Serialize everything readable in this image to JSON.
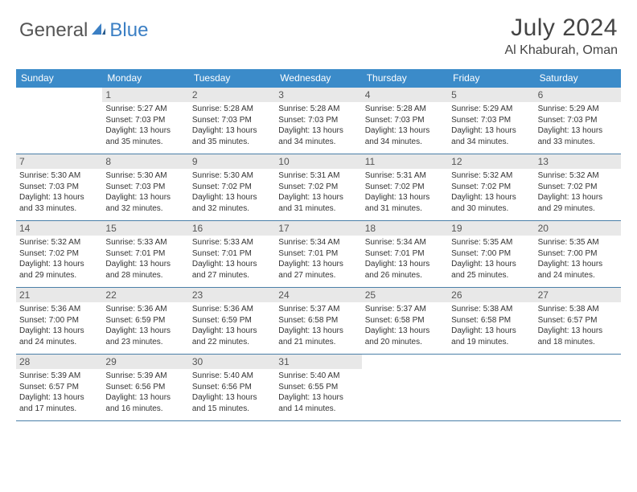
{
  "logo": {
    "general": "General",
    "blue": "Blue"
  },
  "title": {
    "monthYear": "July 2024",
    "location": "Al Khaburah, Oman"
  },
  "colors": {
    "headerBar": "#3b8bc9",
    "dayNumberBg": "#e8e8e8",
    "rowBorder": "#4a7fa8",
    "logoBlue": "#3b7fc4",
    "text": "#333333"
  },
  "weekdays": [
    "Sunday",
    "Monday",
    "Tuesday",
    "Wednesday",
    "Thursday",
    "Friday",
    "Saturday"
  ],
  "weeks": [
    [
      null,
      {
        "n": "1",
        "sunrise": "5:27 AM",
        "sunset": "7:03 PM",
        "dl": "13 hours and 35 minutes."
      },
      {
        "n": "2",
        "sunrise": "5:28 AM",
        "sunset": "7:03 PM",
        "dl": "13 hours and 35 minutes."
      },
      {
        "n": "3",
        "sunrise": "5:28 AM",
        "sunset": "7:03 PM",
        "dl": "13 hours and 34 minutes."
      },
      {
        "n": "4",
        "sunrise": "5:28 AM",
        "sunset": "7:03 PM",
        "dl": "13 hours and 34 minutes."
      },
      {
        "n": "5",
        "sunrise": "5:29 AM",
        "sunset": "7:03 PM",
        "dl": "13 hours and 34 minutes."
      },
      {
        "n": "6",
        "sunrise": "5:29 AM",
        "sunset": "7:03 PM",
        "dl": "13 hours and 33 minutes."
      }
    ],
    [
      {
        "n": "7",
        "sunrise": "5:30 AM",
        "sunset": "7:03 PM",
        "dl": "13 hours and 33 minutes."
      },
      {
        "n": "8",
        "sunrise": "5:30 AM",
        "sunset": "7:03 PM",
        "dl": "13 hours and 32 minutes."
      },
      {
        "n": "9",
        "sunrise": "5:30 AM",
        "sunset": "7:02 PM",
        "dl": "13 hours and 32 minutes."
      },
      {
        "n": "10",
        "sunrise": "5:31 AM",
        "sunset": "7:02 PM",
        "dl": "13 hours and 31 minutes."
      },
      {
        "n": "11",
        "sunrise": "5:31 AM",
        "sunset": "7:02 PM",
        "dl": "13 hours and 31 minutes."
      },
      {
        "n": "12",
        "sunrise": "5:32 AM",
        "sunset": "7:02 PM",
        "dl": "13 hours and 30 minutes."
      },
      {
        "n": "13",
        "sunrise": "5:32 AM",
        "sunset": "7:02 PM",
        "dl": "13 hours and 29 minutes."
      }
    ],
    [
      {
        "n": "14",
        "sunrise": "5:32 AM",
        "sunset": "7:02 PM",
        "dl": "13 hours and 29 minutes."
      },
      {
        "n": "15",
        "sunrise": "5:33 AM",
        "sunset": "7:01 PM",
        "dl": "13 hours and 28 minutes."
      },
      {
        "n": "16",
        "sunrise": "5:33 AM",
        "sunset": "7:01 PM",
        "dl": "13 hours and 27 minutes."
      },
      {
        "n": "17",
        "sunrise": "5:34 AM",
        "sunset": "7:01 PM",
        "dl": "13 hours and 27 minutes."
      },
      {
        "n": "18",
        "sunrise": "5:34 AM",
        "sunset": "7:01 PM",
        "dl": "13 hours and 26 minutes."
      },
      {
        "n": "19",
        "sunrise": "5:35 AM",
        "sunset": "7:00 PM",
        "dl": "13 hours and 25 minutes."
      },
      {
        "n": "20",
        "sunrise": "5:35 AM",
        "sunset": "7:00 PM",
        "dl": "13 hours and 24 minutes."
      }
    ],
    [
      {
        "n": "21",
        "sunrise": "5:36 AM",
        "sunset": "7:00 PM",
        "dl": "13 hours and 24 minutes."
      },
      {
        "n": "22",
        "sunrise": "5:36 AM",
        "sunset": "6:59 PM",
        "dl": "13 hours and 23 minutes."
      },
      {
        "n": "23",
        "sunrise": "5:36 AM",
        "sunset": "6:59 PM",
        "dl": "13 hours and 22 minutes."
      },
      {
        "n": "24",
        "sunrise": "5:37 AM",
        "sunset": "6:58 PM",
        "dl": "13 hours and 21 minutes."
      },
      {
        "n": "25",
        "sunrise": "5:37 AM",
        "sunset": "6:58 PM",
        "dl": "13 hours and 20 minutes."
      },
      {
        "n": "26",
        "sunrise": "5:38 AM",
        "sunset": "6:58 PM",
        "dl": "13 hours and 19 minutes."
      },
      {
        "n": "27",
        "sunrise": "5:38 AM",
        "sunset": "6:57 PM",
        "dl": "13 hours and 18 minutes."
      }
    ],
    [
      {
        "n": "28",
        "sunrise": "5:39 AM",
        "sunset": "6:57 PM",
        "dl": "13 hours and 17 minutes."
      },
      {
        "n": "29",
        "sunrise": "5:39 AM",
        "sunset": "6:56 PM",
        "dl": "13 hours and 16 minutes."
      },
      {
        "n": "30",
        "sunrise": "5:40 AM",
        "sunset": "6:56 PM",
        "dl": "13 hours and 15 minutes."
      },
      {
        "n": "31",
        "sunrise": "5:40 AM",
        "sunset": "6:55 PM",
        "dl": "13 hours and 14 minutes."
      },
      null,
      null,
      null
    ]
  ],
  "labels": {
    "sunrise": "Sunrise:",
    "sunset": "Sunset:",
    "daylight": "Daylight:"
  }
}
